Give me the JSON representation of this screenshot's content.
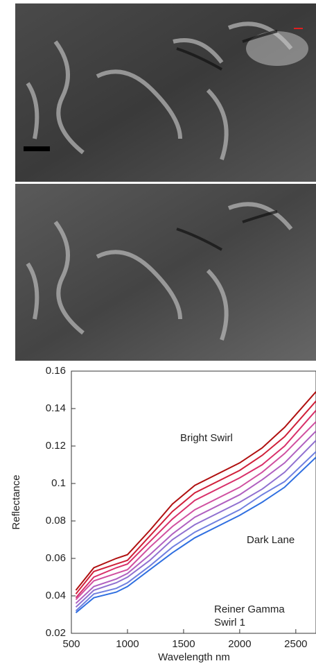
{
  "chart_data": {
    "type": "line",
    "x_label": "Wavelength nm",
    "y_label": "Reflectance",
    "annotations": [
      "Bright Swirl",
      "Dark Lane",
      "Reiner Gamma",
      "Swirl 1"
    ],
    "x": [
      540,
      700,
      900,
      1000,
      1200,
      1400,
      1600,
      2000,
      2200,
      2400,
      2680
    ],
    "series": [
      {
        "color": "#b01010",
        "values": [
          0.043,
          0.055,
          0.06,
          0.062,
          0.075,
          0.089,
          0.099,
          0.111,
          0.119,
          0.13,
          0.149
        ]
      },
      {
        "color": "#d0203a",
        "values": [
          0.041,
          0.053,
          0.057,
          0.059,
          0.072,
          0.085,
          0.095,
          0.107,
          0.115,
          0.125,
          0.144
        ]
      },
      {
        "color": "#d8306a",
        "values": [
          0.039,
          0.05,
          0.055,
          0.057,
          0.069,
          0.081,
          0.091,
          0.103,
          0.11,
          0.12,
          0.139
        ]
      },
      {
        "color": "#d050a0",
        "values": [
          0.038,
          0.048,
          0.052,
          0.054,
          0.066,
          0.077,
          0.086,
          0.098,
          0.106,
          0.116,
          0.133
        ]
      },
      {
        "color": "#b060c0",
        "values": [
          0.036,
          0.045,
          0.049,
          0.052,
          0.062,
          0.073,
          0.082,
          0.094,
          0.102,
          0.111,
          0.128
        ]
      },
      {
        "color": "#9070d0",
        "values": [
          0.034,
          0.043,
          0.047,
          0.05,
          0.059,
          0.07,
          0.078,
          0.09,
          0.097,
          0.106,
          0.123
        ]
      },
      {
        "color": "#7080e0",
        "values": [
          0.032,
          0.041,
          0.044,
          0.047,
          0.056,
          0.066,
          0.074,
          0.086,
          0.094,
          0.101,
          0.117
        ]
      },
      {
        "color": "#2f6fe0",
        "values": [
          0.031,
          0.039,
          0.042,
          0.045,
          0.054,
          0.063,
          0.071,
          0.083,
          0.09,
          0.098,
          0.114
        ]
      }
    ],
    "xlim": [
      500,
      2680
    ],
    "xticks": [
      500,
      1000,
      1500,
      2000,
      2500
    ],
    "ylim": [
      0.02,
      0.16
    ],
    "yticks": [
      0.02,
      0.04,
      0.06,
      0.08,
      0.1,
      0.12,
      0.14,
      0.16
    ]
  }
}
